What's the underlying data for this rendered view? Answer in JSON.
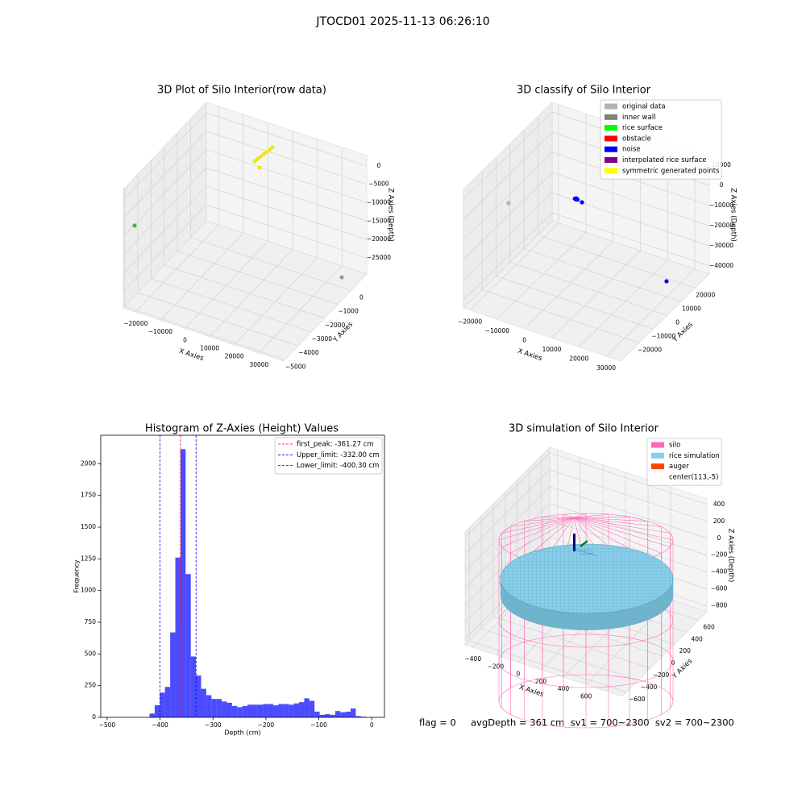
{
  "title": "JTOCD01 2025-11-13 06:26:10",
  "chart_data": [
    {
      "type": "scatter3d",
      "title": "3D Plot of Silo Interior(row data)",
      "xlabel": "X Axies",
      "ylabel": "Y Axies",
      "zlabel": "Z Axies (Depth)",
      "xlim": [
        -25000,
        40000
      ],
      "ylim": [
        -5100,
        1200
      ],
      "zlim": [
        -29400,
        2800
      ],
      "xticks": [
        {
          "value": -20000,
          "label": "−20000"
        },
        {
          "value": -10000,
          "label": "−10000"
        },
        0,
        10000,
        20000,
        30000
      ],
      "yticks": [
        {
          "value": -5000,
          "label": "−5000"
        },
        {
          "value": -4000,
          "label": "−4000"
        },
        {
          "value": -3000,
          "label": "−3000"
        },
        {
          "value": -2000,
          "label": "−2000"
        },
        {
          "value": -1000,
          "label": "−1000"
        },
        0
      ],
      "zticks": [
        0,
        {
          "value": -5000,
          "label": "−5000"
        },
        {
          "value": -10000,
          "label": "−10000"
        },
        {
          "value": -15000,
          "label": "−15000"
        },
        {
          "value": -20000,
          "label": "−20000"
        },
        {
          "value": -25000,
          "label": "−25000"
        }
      ],
      "series": [
        {
          "color": "#f5e31b",
          "x": [
            3700,
            3930,
            4170,
            4400,
            4630,
            4870,
            5100,
            5350
          ],
          "y": [
            -500,
            -320,
            -140,
            40,
            220,
            400,
            580,
            -445
          ],
          "z": [
            -420,
            -420,
            -420,
            -420,
            -420,
            -420,
            -420,
            -2030
          ]
        },
        {
          "color": "#3cb44b",
          "x": [
            -24800
          ],
          "y": [
            -4280
          ],
          "z": [
            -10080
          ]
        },
        {
          "color": "#9a9a9a",
          "x": [
            36750
          ],
          "y": [
            -85
          ],
          "z": [
            -26180
          ]
        }
      ]
    },
    {
      "type": "scatter3d",
      "title": "3D classify of Silo Interior",
      "xlabel": "X Axies",
      "ylabel": "Y Axies",
      "zlabel": "Z Axies (Depth)",
      "xlim": [
        -22400,
        35300
      ],
      "ylim": [
        -33300,
        30200
      ],
      "zlim": [
        -44000,
        14800
      ],
      "xticks": [
        {
          "value": -20000,
          "label": "−20000"
        },
        {
          "value": -10000,
          "label": "−10000"
        },
        0,
        10000,
        20000,
        30000
      ],
      "yticks": [
        {
          "value": -20000,
          "label": "−20000"
        },
        {
          "value": -10000,
          "label": "−10000"
        },
        0,
        10000,
        20000
      ],
      "zticks": [
        10000,
        0,
        {
          "value": -10000,
          "label": "−10000"
        },
        {
          "value": -20000,
          "label": "−20000"
        },
        {
          "value": -30000,
          "label": "−30000"
        },
        {
          "value": -40000,
          "label": "−40000"
        }
      ],
      "legend": "upper right",
      "series": [
        {
          "name": "original data",
          "color": "#b3b3b3",
          "x": [
            -19460
          ],
          "y": [
            -6760
          ],
          "z": [
            -8720
          ]
        },
        {
          "name": "inner wall",
          "color": "#808080"
        },
        {
          "name": "rice surface",
          "color": "#00ff00"
        },
        {
          "name": "obstacle",
          "color": "#ff0000"
        },
        {
          "name": "noise",
          "color": "#0000ff",
          "x": [
            4000,
            4300,
            4500,
            4700,
            5000,
            6970,
            28950
          ],
          "y": [
            -5000,
            -4600,
            -5200,
            -4800,
            -5000,
            -5680,
            11980
          ],
          "z": [
            3040,
            3040,
            3040,
            3040,
            3040,
            3040,
            -38120
          ]
        },
        {
          "name": "interpolated rice surface",
          "color": "#800080"
        },
        {
          "name": "symmetric generated points",
          "color": "#ffff00"
        }
      ]
    },
    {
      "type": "histogram",
      "title": "Histogram of Z-Axies (Height) Values",
      "xlabel": "Depth (cm)",
      "ylabel": "Frequency",
      "color": "#0000ff",
      "alpha": 0.7,
      "bins": [
        -488.0,
        -478.26,
        -468.52,
        -458.78,
        -449.04,
        -439.3,
        -429.56,
        -419.82,
        -410.08,
        -400.34,
        -390.6,
        -380.86,
        -371.12,
        -361.38,
        -351.64,
        -341.9,
        -332.16,
        -322.42,
        -312.68,
        -302.94,
        -293.2,
        -283.46,
        -273.72,
        -263.98,
        -254.24,
        -244.5,
        -234.76,
        -225.02,
        -215.28,
        -205.54,
        -195.8,
        -186.06,
        -176.32,
        -166.58,
        -156.84,
        -147.1,
        -137.36,
        -127.62,
        -117.88,
        -108.14,
        -98.4,
        -88.66,
        -78.92,
        -69.18,
        -59.44,
        -49.7,
        -39.96,
        -30.22,
        -20.48,
        -10.74,
        -1.0
      ],
      "values": [
        0,
        0,
        0,
        0,
        0,
        0,
        0,
        30,
        95,
        195,
        240,
        670,
        1260,
        2115,
        1130,
        480,
        330,
        225,
        175,
        145,
        145,
        125,
        115,
        90,
        80,
        90,
        100,
        100,
        100,
        105,
        105,
        95,
        105,
        105,
        100,
        110,
        120,
        150,
        130,
        45,
        20,
        25,
        20,
        50,
        40,
        45,
        70,
        10,
        5,
        0
      ],
      "xlim": [
        -512,
        24
      ],
      "ylim": [
        0,
        2225
      ],
      "xticks": [
        {
          "value": -500,
          "label": "−500"
        },
        {
          "value": -400,
          "label": "−400"
        },
        {
          "value": -300,
          "label": "−300"
        },
        {
          "value": -200,
          "label": "−200"
        },
        {
          "value": -100,
          "label": "−100"
        },
        0
      ],
      "yticks": [
        0,
        250,
        500,
        750,
        1000,
        1250,
        1500,
        1750,
        2000
      ],
      "legend": "upper right",
      "lines": [
        {
          "label": "first_peak: -361.27 cm",
          "value": -361.27,
          "color": "#ff0000"
        },
        {
          "label": "Upper_limit: -332.00 cm",
          "value": -332.0,
          "color": "#0000ff"
        },
        {
          "label": "Lower_limit: -400.30 cm",
          "value": -400.3,
          "color": "#0000ff"
        }
      ]
    },
    {
      "type": "scatter3d",
      "title": "3D simulation of Silo Interior",
      "xlabel": "X Axies",
      "ylabel": "Y Axies",
      "zlabel": "Z Axies (Depth)",
      "xlim": [
        -470,
        920
      ],
      "ylim": [
        -670,
        740
      ],
      "zlim": [
        -870,
        465
      ],
      "xticks": [
        {
          "value": -400,
          "label": "−400"
        },
        {
          "value": -200,
          "label": "−200"
        },
        0,
        200,
        400,
        600
      ],
      "yticks": [
        {
          "value": -600,
          "label": "−600"
        },
        {
          "value": -400,
          "label": "−400"
        },
        {
          "value": -200,
          "label": "−200"
        },
        0,
        200,
        400,
        600
      ],
      "zticks": [
        {
          "value": -800,
          "label": "−800"
        },
        {
          "value": -600,
          "label": "−600"
        },
        {
          "value": -400,
          "label": "−400"
        },
        {
          "value": -200,
          "label": "−200"
        },
        0,
        200,
        400
      ],
      "legend": "upper right",
      "series": [
        {
          "name": "silo",
          "color": "#ff69b4"
        },
        {
          "name": "rice simulation",
          "color": "#87ceeb"
        },
        {
          "name": "auger",
          "color": "#ff4500"
        },
        {
          "name": "center(113,-5)",
          "color": "#ffffff"
        }
      ]
    }
  ],
  "footer": "flag = 0     avgDepth = 361 cm  sv1 = 700~2300  sv2 = 700~2300"
}
